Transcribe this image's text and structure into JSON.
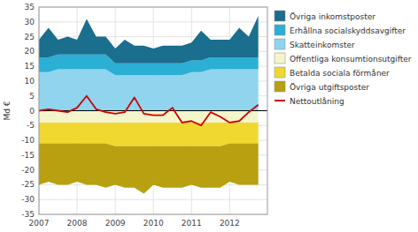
{
  "chart_data": {
    "type": "area",
    "stacked": true,
    "grid": true,
    "ylabel": "Md €",
    "xlim": [
      2007,
      2012.99
    ],
    "xticks": [
      2007,
      2008,
      2009,
      2010,
      2011,
      2012
    ],
    "ylim": [
      -35,
      35
    ],
    "yticks": [
      -35,
      -30,
      -25,
      -20,
      -15,
      -10,
      -5,
      0,
      5,
      10,
      15,
      20,
      25,
      30,
      35
    ],
    "x": [
      2007.0,
      2007.25,
      2007.5,
      2007.75,
      2008.0,
      2008.25,
      2008.5,
      2008.75,
      2009.0,
      2009.25,
      2009.5,
      2009.75,
      2010.0,
      2010.25,
      2010.5,
      2010.75,
      2011.0,
      2011.25,
      2011.5,
      2011.75,
      2012.0,
      2012.25,
      2012.5,
      2012.75
    ],
    "series": [
      {
        "name": "Skatteinkomster",
        "type": "area",
        "color": "#90d4ee",
        "values": [
          13,
          13,
          14,
          14,
          14,
          14,
          14,
          14,
          12,
          12,
          12,
          12,
          12,
          12,
          12,
          12,
          13,
          13,
          14,
          14,
          14,
          14,
          14,
          14
        ]
      },
      {
        "name": "Erhållna socialskyddsavgifter",
        "type": "area",
        "color": "#2bafd4",
        "values": [
          5,
          5,
          5,
          5,
          5,
          5,
          5,
          5,
          4,
          4,
          4,
          4,
          4,
          4,
          4,
          4,
          4,
          4,
          4,
          4,
          4,
          4,
          4,
          4
        ]
      },
      {
        "name": "Övriga inkomstposter",
        "type": "area",
        "color": "#1a6e8e",
        "values": [
          6,
          10,
          5,
          6,
          5,
          12,
          6,
          6,
          5,
          8,
          6,
          6,
          5,
          6,
          6,
          6,
          6,
          10,
          6,
          6,
          6,
          10,
          7,
          14
        ]
      },
      {
        "name": "Offentliga konsumtionsutgifter",
        "type": "area",
        "color": "#f5f5cc",
        "values": [
          -4,
          -4,
          -4,
          -4,
          -4,
          -4,
          -4,
          -4,
          -4,
          -4,
          -4,
          -4,
          -4,
          -4,
          -4,
          -4,
          -4,
          -4,
          -4,
          -4,
          -4,
          -4,
          -4,
          -4
        ]
      },
      {
        "name": "Betalda sociala förmåner",
        "type": "area",
        "color": "#f0d830",
        "values": [
          -7,
          -7,
          -7,
          -7,
          -7,
          -7,
          -7,
          -7,
          -8,
          -8,
          -8,
          -8,
          -8,
          -8,
          -8,
          -8,
          -8,
          -8,
          -8,
          -8,
          -7,
          -7,
          -7,
          -7
        ]
      },
      {
        "name": "Övriga utgiftsposter",
        "type": "area",
        "color": "#b8a010",
        "values": [
          -14,
          -13,
          -14,
          -14,
          -13,
          -14,
          -14,
          -15,
          -13,
          -14,
          -14,
          -16,
          -13,
          -14,
          -14,
          -14,
          -13,
          -14,
          -14,
          -14,
          -13,
          -14,
          -14,
          -14
        ]
      },
      {
        "name": "Nettoutlåning",
        "type": "line",
        "color": "#cc0000",
        "values": [
          0,
          0.5,
          0,
          -0.5,
          1,
          5,
          0.5,
          -0.5,
          -1,
          -0.5,
          4.5,
          -1,
          -1.5,
          -1.5,
          1,
          -4,
          -3.5,
          -5,
          -0.5,
          -2,
          -4,
          -3.5,
          -0.5,
          2
        ]
      }
    ]
  }
}
